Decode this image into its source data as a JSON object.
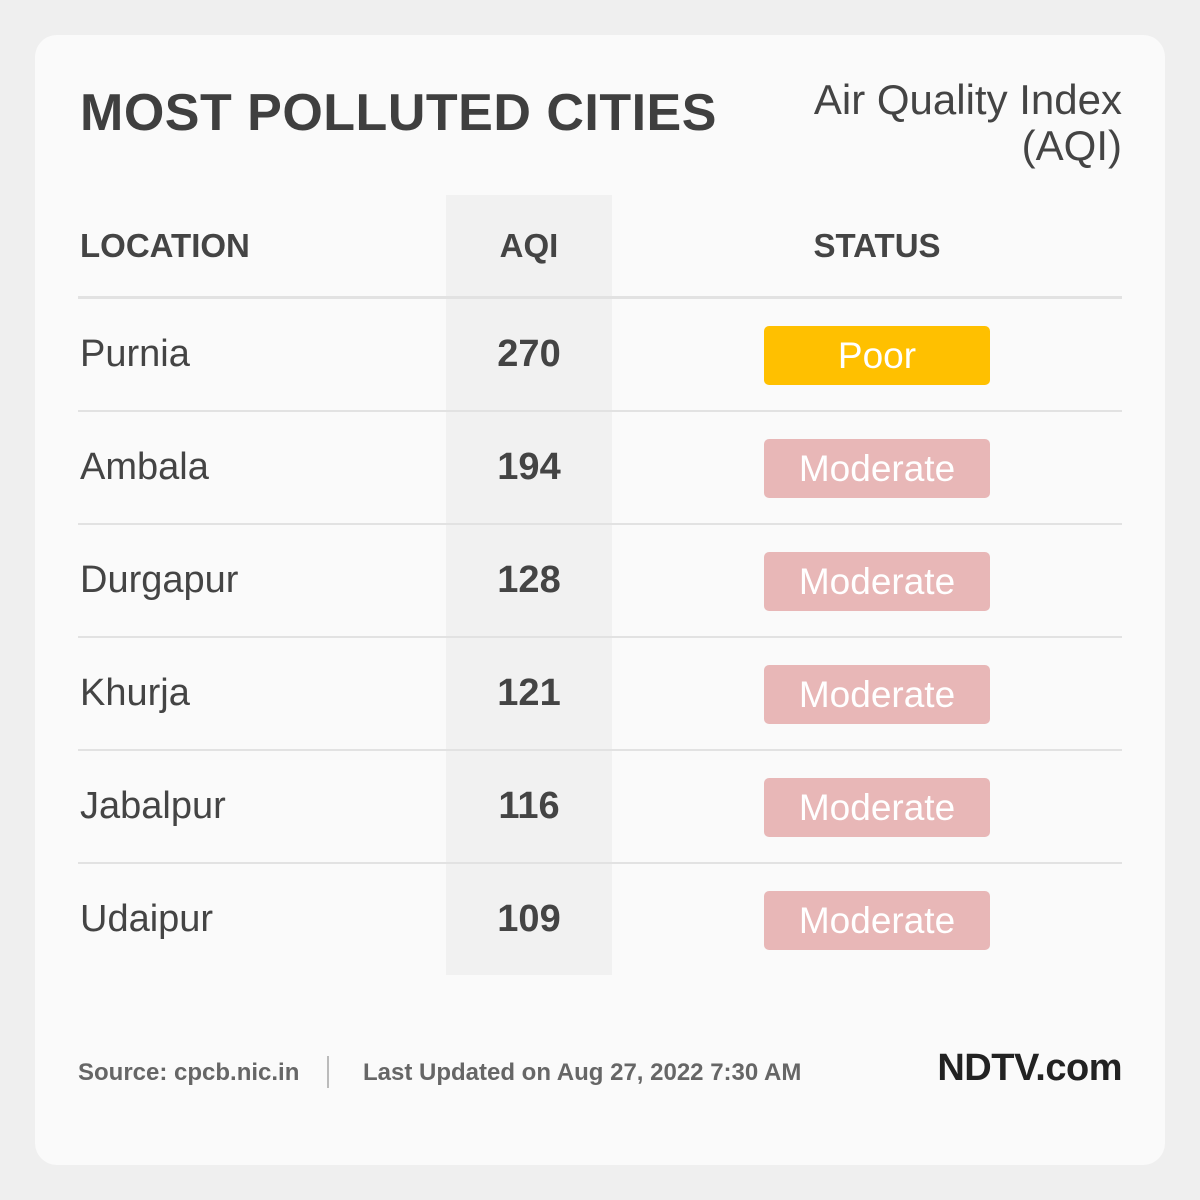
{
  "title": "MOST POLLUTED CITIES",
  "subtitle_line1": "Air Quality Index",
  "subtitle_line2": "(AQI)",
  "headers": {
    "location": "LOCATION",
    "aqi": "AQI",
    "status": "STATUS"
  },
  "status_colors": {
    "Poor": "#ffc000",
    "Moderate": "#e8b7b7"
  },
  "chart_data": {
    "type": "table",
    "title": "MOST POLLUTED CITIES",
    "columns": [
      "LOCATION",
      "AQI",
      "STATUS"
    ],
    "rows": [
      {
        "location": "Purnia",
        "aqi": "270",
        "status": "Poor"
      },
      {
        "location": "Ambala",
        "aqi": "194",
        "status": "Moderate"
      },
      {
        "location": "Durgapur",
        "aqi": "128",
        "status": "Moderate"
      },
      {
        "location": "Khurja",
        "aqi": "121",
        "status": "Moderate"
      },
      {
        "location": "Jabalpur",
        "aqi": "116",
        "status": "Moderate"
      },
      {
        "location": "Udaipur",
        "aqi": "109",
        "status": "Moderate"
      }
    ]
  },
  "footer": {
    "source": "Source: cpcb.nic.in",
    "updated": "Last Updated on Aug 27, 2022 7:30 AM",
    "logo": "NDTV.com"
  }
}
